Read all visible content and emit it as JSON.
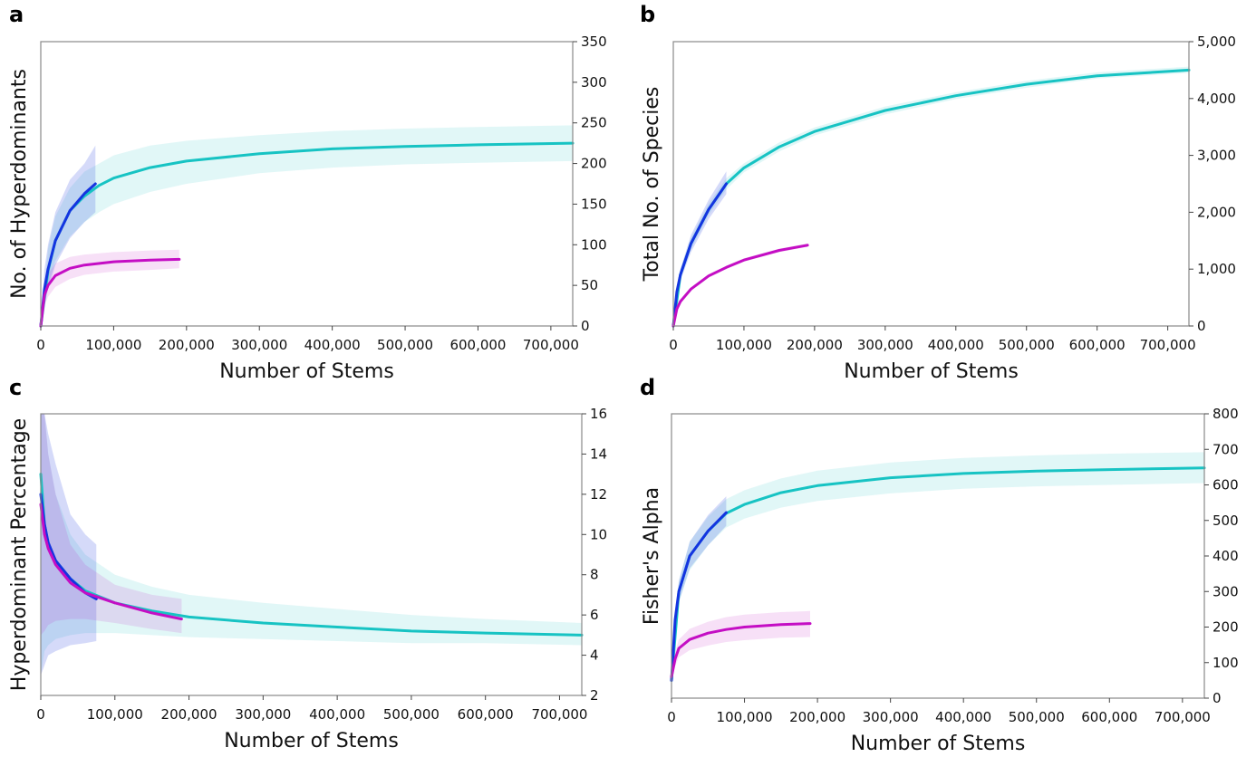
{
  "colors": {
    "cyan": "#17c3c3",
    "blue": "#1434e0",
    "magenta": "#c40ec4"
  },
  "chart_data": [
    {
      "panel": "a",
      "type": "line",
      "xlabel": "Number of Stems",
      "ylabel": "No. of Hyperdominants",
      "xlim": [
        0,
        730000
      ],
      "ylim": [
        0,
        350
      ],
      "xticks": [
        0,
        100000,
        200000,
        300000,
        400000,
        500000,
        600000,
        700000
      ],
      "xtick_labels": [
        "0",
        "100,000",
        "200,000",
        "300,000",
        "400,000",
        "500,000",
        "600,000",
        "700,000"
      ],
      "yticks": [
        0,
        50,
        100,
        150,
        200,
        250,
        300,
        350
      ],
      "ytick_labels": [
        "0",
        "50",
        "100",
        "150",
        "200",
        "250",
        "300",
        "350"
      ],
      "y_axis_side": "right",
      "series": [
        {
          "color": "cyan",
          "x": [
            0,
            10000,
            20000,
            40000,
            60000,
            80000,
            100000,
            150000,
            200000,
            300000,
            400000,
            500000,
            600000,
            730000
          ],
          "y": [
            0,
            68,
            105,
            142,
            160,
            173,
            182,
            195,
            203,
            212,
            218,
            221,
            223,
            225
          ],
          "lower": [
            0,
            50,
            80,
            110,
            128,
            140,
            150,
            165,
            175,
            188,
            195,
            199,
            201,
            203
          ],
          "upper": [
            0,
            95,
            135,
            170,
            190,
            200,
            210,
            222,
            228,
            235,
            240,
            243,
            245,
            247
          ]
        },
        {
          "color": "blue",
          "x": [
            0,
            5000,
            10000,
            20000,
            40000,
            60000,
            75000
          ],
          "y": [
            0,
            45,
            70,
            105,
            142,
            163,
            175
          ],
          "lower": [
            0,
            25,
            45,
            75,
            108,
            128,
            140
          ],
          "upper": [
            0,
            70,
            100,
            140,
            180,
            200,
            222
          ]
        },
        {
          "color": "magenta",
          "x": [
            0,
            5000,
            10000,
            20000,
            40000,
            60000,
            100000,
            150000,
            190000
          ],
          "y": [
            0,
            38,
            50,
            62,
            71,
            75,
            79,
            81,
            82
          ],
          "lower": [
            0,
            25,
            36,
            48,
            58,
            63,
            67,
            69,
            71
          ],
          "upper": [
            0,
            52,
            64,
            77,
            85,
            88,
            91,
            93,
            94
          ]
        }
      ]
    },
    {
      "panel": "b",
      "type": "line",
      "xlabel": "Number of Stems",
      "ylabel": "Total No. of Species",
      "xlim": [
        0,
        730000
      ],
      "ylim": [
        0,
        5000
      ],
      "xticks": [
        0,
        100000,
        200000,
        300000,
        400000,
        500000,
        600000,
        700000
      ],
      "xtick_labels": [
        "0",
        "100,000",
        "200,000",
        "300,000",
        "400,000",
        "500,000",
        "600,000",
        "700,000"
      ],
      "yticks": [
        0,
        1000,
        2000,
        3000,
        4000,
        5000
      ],
      "ytick_labels": [
        "0",
        "1,000",
        "2,000",
        "3,000",
        "4,000",
        "5,000"
      ],
      "y_axis_side": "right",
      "series": [
        {
          "color": "cyan",
          "x": [
            0,
            10000,
            25000,
            50000,
            75000,
            100000,
            150000,
            200000,
            300000,
            400000,
            500000,
            600000,
            730000
          ],
          "y": [
            0,
            900,
            1450,
            2050,
            2500,
            2780,
            3150,
            3420,
            3790,
            4050,
            4250,
            4400,
            4500
          ],
          "lower": [
            0,
            820,
            1350,
            1950,
            2400,
            2700,
            3070,
            3350,
            3720,
            3990,
            4190,
            4350,
            4450
          ],
          "upper": [
            0,
            980,
            1550,
            2150,
            2600,
            2860,
            3230,
            3490,
            3860,
            4110,
            4310,
            4460,
            4560
          ]
        },
        {
          "color": "blue",
          "x": [
            0,
            5000,
            10000,
            25000,
            50000,
            75000
          ],
          "y": [
            0,
            600,
            900,
            1450,
            2050,
            2500
          ],
          "lower": [
            0,
            500,
            800,
            1300,
            1880,
            2320
          ],
          "upper": [
            0,
            700,
            1000,
            1600,
            2220,
            2720
          ]
        },
        {
          "color": "magenta",
          "x": [
            0,
            5000,
            10000,
            25000,
            50000,
            75000,
            100000,
            150000,
            190000
          ],
          "y": [
            0,
            300,
            430,
            650,
            880,
            1030,
            1160,
            1330,
            1420
          ],
          "lower": [
            0,
            270,
            400,
            620,
            850,
            1000,
            1130,
            1300,
            1390
          ],
          "upper": [
            0,
            330,
            460,
            680,
            910,
            1060,
            1190,
            1360,
            1450
          ]
        }
      ]
    },
    {
      "panel": "c",
      "type": "line",
      "xlabel": "Number of Stems",
      "ylabel": "Hyperdominant Percentage",
      "xlim": [
        0,
        730000
      ],
      "ylim": [
        2,
        16
      ],
      "xticks": [
        0,
        100000,
        200000,
        300000,
        400000,
        500000,
        600000,
        700000
      ],
      "xtick_labels": [
        "0",
        "100,000",
        "200,000",
        "300,000",
        "400,000",
        "500,000",
        "600,000",
        "700,000"
      ],
      "yticks": [
        2,
        4,
        6,
        8,
        10,
        12,
        14,
        16
      ],
      "ytick_labels": [
        "2",
        "4",
        "6",
        "8",
        "10",
        "12",
        "14",
        "16"
      ],
      "y_axis_side": "right",
      "series": [
        {
          "color": "cyan",
          "x": [
            0,
            5000,
            10000,
            20000,
            40000,
            60000,
            80000,
            100000,
            150000,
            200000,
            300000,
            400000,
            500000,
            600000,
            730000
          ],
          "y": [
            13,
            10.5,
            9.5,
            8.7,
            7.8,
            7.2,
            6.9,
            6.6,
            6.2,
            5.9,
            5.6,
            5.4,
            5.2,
            5.1,
            5.0
          ],
          "lower": [
            3,
            4.2,
            4.5,
            4.8,
            5.0,
            5.1,
            5.1,
            5.1,
            5.0,
            4.9,
            4.8,
            4.7,
            4.6,
            4.6,
            4.5
          ],
          "upper": [
            16,
            16,
            14,
            12,
            10,
            9.0,
            8.5,
            8.0,
            7.4,
            7.0,
            6.6,
            6.3,
            6.0,
            5.8,
            5.6
          ]
        },
        {
          "color": "blue",
          "x": [
            0,
            5000,
            10000,
            20000,
            40000,
            60000,
            75000
          ],
          "y": [
            12,
            10.5,
            9.6,
            8.7,
            7.8,
            7.1,
            6.8
          ],
          "lower": [
            3,
            3.5,
            4.0,
            4.2,
            4.5,
            4.6,
            4.7
          ],
          "upper": [
            16,
            16,
            15,
            13.5,
            11,
            10,
            9.5
          ]
        },
        {
          "color": "magenta",
          "x": [
            0,
            5000,
            10000,
            20000,
            40000,
            60000,
            100000,
            150000,
            190000
          ],
          "y": [
            11.5,
            10,
            9.3,
            8.5,
            7.6,
            7.1,
            6.6,
            6.1,
            5.8
          ],
          "lower": [
            5,
            5.2,
            5.5,
            5.7,
            5.8,
            5.8,
            5.6,
            5.3,
            5.1
          ],
          "upper": [
            16,
            16,
            14,
            12,
            9.5,
            8.5,
            7.5,
            7.0,
            6.8
          ]
        }
      ]
    },
    {
      "panel": "d",
      "type": "line",
      "xlabel": "Number of Stems",
      "ylabel": "Fisher's Alpha",
      "xlim": [
        0,
        730000
      ],
      "ylim": [
        0,
        800
      ],
      "xticks": [
        0,
        100000,
        200000,
        300000,
        400000,
        500000,
        600000,
        700000
      ],
      "xtick_labels": [
        "0",
        "100,000",
        "200,000",
        "300,000",
        "400,000",
        "500,000",
        "600,000",
        "700,000"
      ],
      "yticks": [
        0,
        100,
        200,
        300,
        400,
        500,
        600,
        700,
        800
      ],
      "ytick_labels": [
        "0",
        "100",
        "200",
        "300",
        "400",
        "500",
        "600",
        "700",
        "800"
      ],
      "y_axis_side": "right",
      "series": [
        {
          "color": "cyan",
          "x": [
            0,
            10000,
            25000,
            50000,
            75000,
            100000,
            150000,
            200000,
            300000,
            400000,
            500000,
            600000,
            730000
          ],
          "y": [
            50,
            300,
            400,
            470,
            520,
            545,
            578,
            598,
            620,
            632,
            639,
            643,
            648
          ],
          "lower": [
            50,
            270,
            360,
            430,
            480,
            505,
            536,
            555,
            576,
            589,
            596,
            600,
            605
          ],
          "upper": [
            50,
            330,
            440,
            510,
            560,
            585,
            618,
            640,
            663,
            676,
            683,
            688,
            692
          ]
        },
        {
          "color": "blue",
          "x": [
            0,
            5000,
            10000,
            25000,
            50000,
            75000
          ],
          "y": [
            50,
            220,
            300,
            400,
            470,
            522
          ],
          "lower": [
            50,
            190,
            270,
            365,
            430,
            485
          ],
          "upper": [
            50,
            250,
            330,
            440,
            515,
            568
          ]
        },
        {
          "color": "magenta",
          "x": [
            0,
            5000,
            10000,
            25000,
            50000,
            75000,
            100000,
            150000,
            190000
          ],
          "y": [
            60,
            110,
            140,
            165,
            183,
            193,
            200,
            207,
            210
          ],
          "lower": [
            60,
            90,
            115,
            135,
            148,
            158,
            163,
            170,
            172
          ],
          "upper": [
            60,
            130,
            165,
            195,
            215,
            228,
            235,
            242,
            245
          ]
        }
      ]
    }
  ]
}
